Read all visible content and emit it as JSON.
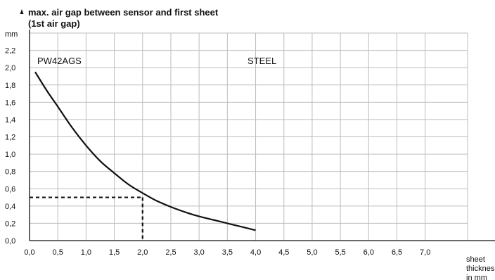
{
  "chart_data": {
    "type": "line",
    "title_lines": [
      "max. air gap between sensor and first sheet",
      "(1st air gap)"
    ],
    "ylabel": "mm",
    "xlabel_lines": [
      "sheet",
      "thickness",
      "in mm"
    ],
    "annotations": [
      "PW42AGS",
      "STEEL"
    ],
    "xlim": [
      0,
      7.75
    ],
    "ylim": [
      0,
      2.4
    ],
    "x_ticks": [
      "0,0",
      "0,5",
      "1,0",
      "1,5",
      "2,0",
      "2,5",
      "3,0",
      "3,5",
      "4,0",
      "4,5",
      "5,0",
      "5,5",
      "6,0",
      "6,5",
      "7,0"
    ],
    "y_ticks": [
      "0,0",
      "0,2",
      "0,4",
      "0,6",
      "0,8",
      "1,0",
      "1,2",
      "1,4",
      "1,6",
      "1,8",
      "2,0",
      "2,2"
    ],
    "grid": true,
    "series": [
      {
        "x": [
          0.1,
          0.3,
          0.5,
          0.75,
          1.0,
          1.25,
          1.5,
          1.75,
          2.0,
          2.25,
          2.5,
          2.75,
          3.0,
          3.25,
          3.5,
          3.75,
          4.0
        ],
        "y": [
          1.95,
          1.74,
          1.55,
          1.31,
          1.1,
          0.92,
          0.78,
          0.65,
          0.55,
          0.46,
          0.39,
          0.33,
          0.28,
          0.24,
          0.2,
          0.16,
          0.12
        ]
      }
    ],
    "reference_point": {
      "x": 2.0,
      "y": 0.5
    }
  }
}
